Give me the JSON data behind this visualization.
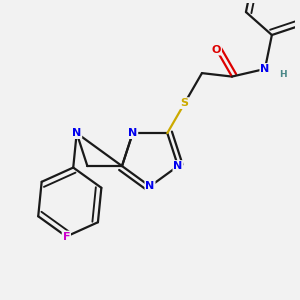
{
  "bg_color": "#f2f2f2",
  "atom_colors": {
    "C": "#1a1a1a",
    "N": "#0000ee",
    "O": "#dd0000",
    "S": "#ccaa00",
    "F": "#cc00cc",
    "H": "#4a8888"
  },
  "bond_color": "#1a1a1a",
  "bond_width": 1.6
}
